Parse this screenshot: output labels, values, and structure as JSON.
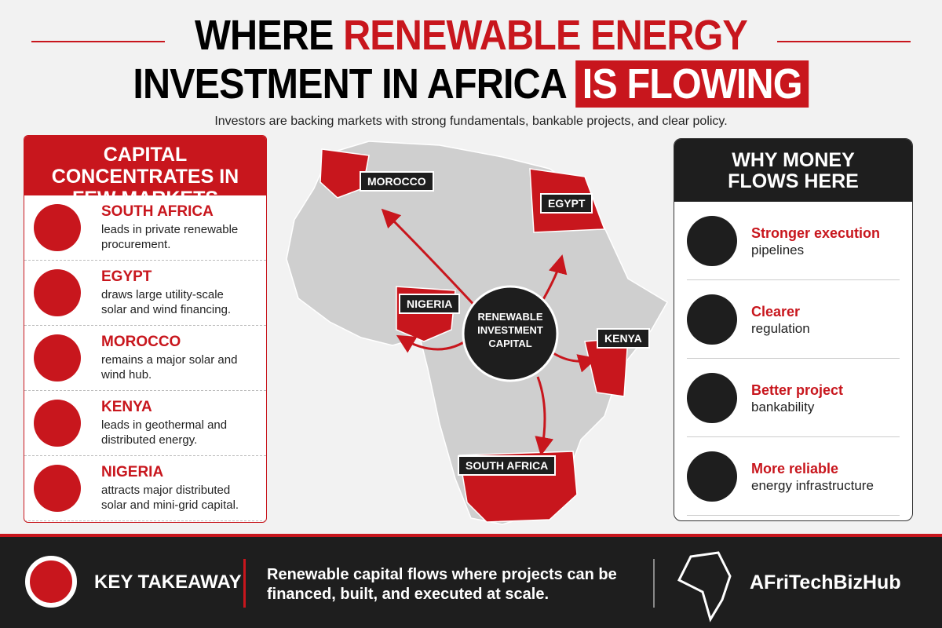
{
  "header": {
    "title_line1_plain": "WHERE",
    "title_line1_red": "RENEWABLE ENERGY",
    "title_line2_plain": "INVESTMENT IN AFRICA",
    "title_line2_box": "IS FLOWING",
    "subtitle": "Investors are backing markets with strong fundamentals, bankable projects, and clear policy."
  },
  "left_panel": {
    "title": "CAPITAL CONCENTRATES IN FEW MARKETS",
    "items": [
      {
        "name": "SOUTH AFRICA",
        "text": "leads in private renewable procurement."
      },
      {
        "name": "EGYPT",
        "text": "draws large utility-scale solar and wind financing."
      },
      {
        "name": "MOROCCO",
        "text": "remains a major solar and wind hub."
      },
      {
        "name": "KENYA",
        "text": "leads in geothermal and distributed energy."
      },
      {
        "name": "NIGERIA",
        "text": "attracts major distributed solar and mini-grid capital."
      }
    ]
  },
  "map": {
    "labels": [
      "MOROCCO",
      "EGYPT",
      "NIGERIA",
      "KENYA",
      "SOUTH AFRICA"
    ],
    "center": "RENEWABLE INVESTMENT CAPITAL"
  },
  "right_panel": {
    "title": "WHY MONEY FLOWS HERE",
    "items": [
      {
        "title": "Stronger execution",
        "text": "pipelines"
      },
      {
        "title": "Clearer",
        "text": "regulation"
      },
      {
        "title": "Better project",
        "text": "bankability"
      },
      {
        "title": "More reliable",
        "text": "energy infrastructure"
      }
    ]
  },
  "footer": {
    "label": "KEY TAKEAWAY",
    "text": "Renewable capital flows where projects can be financed, built, and executed at scale.",
    "brand": "AFriTechBizHub"
  }
}
